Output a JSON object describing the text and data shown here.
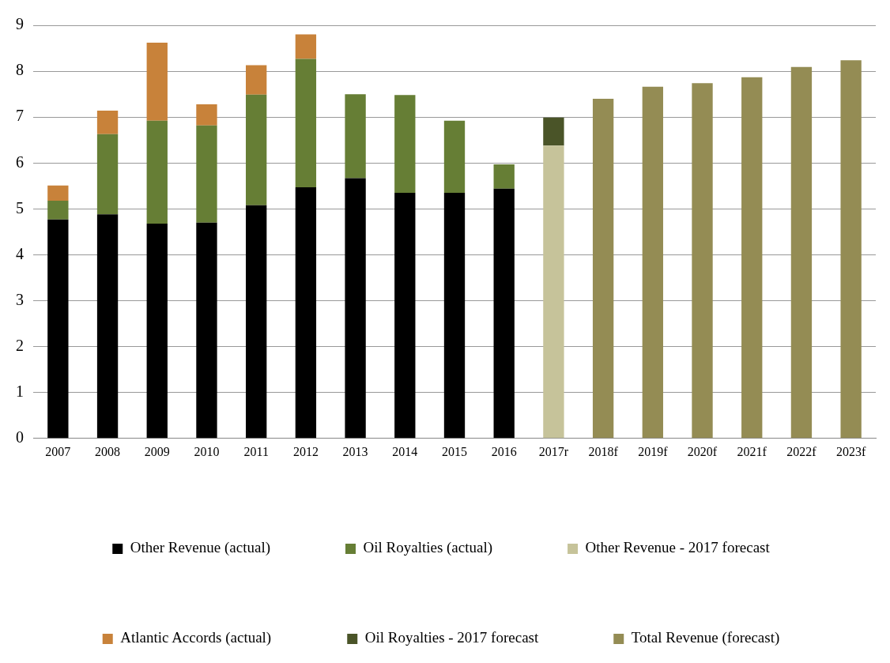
{
  "chart_data": {
    "type": "bar",
    "stacked": true,
    "categories": [
      "2007",
      "2008",
      "2009",
      "2010",
      "2011",
      "2012",
      "2013",
      "2014",
      "2015",
      "2016",
      "2017r",
      "2018f",
      "2019f",
      "2020f",
      "2021f",
      "2022f",
      "2023f"
    ],
    "series": [
      {
        "name": "Other Revenue (actual)",
        "color": "#000000",
        "values": [
          4.77,
          4.88,
          4.68,
          4.7,
          5.08,
          5.47,
          5.67,
          5.35,
          5.35,
          5.44,
          null,
          null,
          null,
          null,
          null,
          null,
          null
        ]
      },
      {
        "name": "Oil Royalties (actual)",
        "color": "#667e35",
        "values": [
          0.41,
          1.75,
          2.24,
          2.12,
          2.41,
          2.8,
          1.83,
          2.13,
          1.57,
          0.53,
          null,
          null,
          null,
          null,
          null,
          null,
          null
        ]
      },
      {
        "name": "Other Revenue - 2017 forecast",
        "color": "#c6c39a",
        "values": [
          null,
          null,
          null,
          null,
          null,
          null,
          null,
          null,
          null,
          null,
          6.38,
          null,
          null,
          null,
          null,
          null,
          null
        ]
      },
      {
        "name": "Atlantic Accords (actual)",
        "color": "#c8823a",
        "values": [
          0.33,
          0.51,
          1.7,
          0.46,
          0.64,
          0.53,
          null,
          null,
          null,
          null,
          null,
          null,
          null,
          null,
          null,
          null,
          null
        ]
      },
      {
        "name": "Oil Royalties - 2017 forecast",
        "color": "#4a5428",
        "values": [
          null,
          null,
          null,
          null,
          null,
          null,
          null,
          null,
          null,
          null,
          0.61,
          null,
          null,
          null,
          null,
          null,
          null
        ]
      },
      {
        "name": "Total Revenue (forecast)",
        "color": "#948c54",
        "values": [
          null,
          null,
          null,
          null,
          null,
          null,
          null,
          null,
          null,
          null,
          null,
          7.4,
          7.66,
          7.74,
          7.87,
          8.09,
          8.24
        ]
      }
    ],
    "ylim": [
      0,
      9
    ],
    "yticks": [
      0,
      1,
      2,
      3,
      4,
      5,
      6,
      7,
      8,
      9
    ],
    "grid": "y",
    "legend": "bottom"
  }
}
